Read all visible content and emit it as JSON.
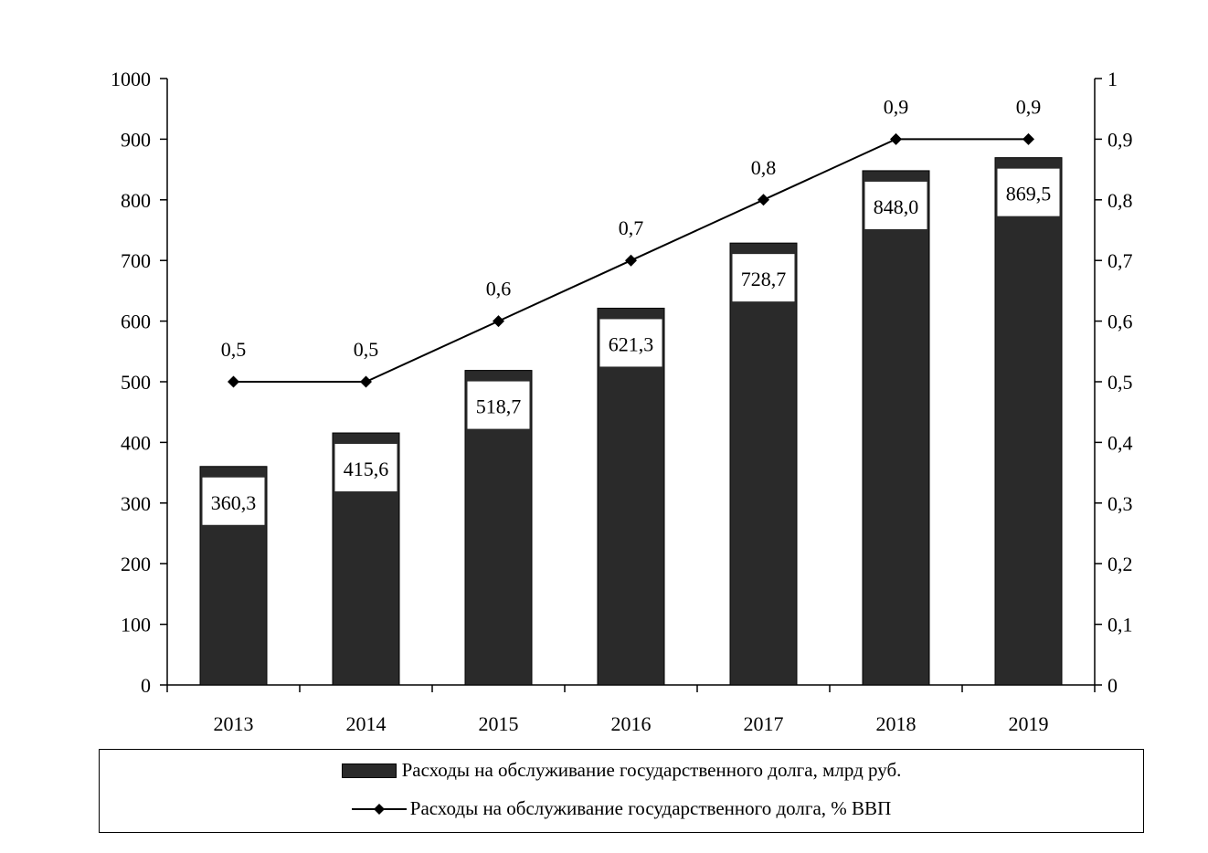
{
  "chart_data": {
    "type": "bar",
    "categories": [
      "2013",
      "2014",
      "2015",
      "2016",
      "2017",
      "2018",
      "2019"
    ],
    "series": [
      {
        "name": "Расходы на обслуживание государственного долга, млрд руб.",
        "type": "bar",
        "axis": "left",
        "values": [
          360.3,
          415.6,
          518.7,
          621.3,
          728.7,
          848.0,
          869.5
        ],
        "labels": [
          "360,3",
          "415,6",
          "518,7",
          "621,3",
          "728,7",
          "848,0",
          "869,5"
        ],
        "color": "#2a2a2a"
      },
      {
        "name": "Расходы на обслуживание государственного долга, % ВВП",
        "type": "line",
        "axis": "right",
        "values": [
          0.5,
          0.5,
          0.6,
          0.7,
          0.8,
          0.9,
          0.9
        ],
        "labels": [
          "0,5",
          "0,5",
          "0,6",
          "0,7",
          "0,8",
          "0,9",
          "0,9"
        ],
        "color": "#000000"
      }
    ],
    "ylim": [
      0,
      1000
    ],
    "y_ticks": [
      "0",
      "100",
      "200",
      "300",
      "400",
      "500",
      "600",
      "700",
      "800",
      "900",
      "1000"
    ],
    "y2lim": [
      0,
      1
    ],
    "y2_ticks": [
      "0",
      "0,1",
      "0,2",
      "0,3",
      "0,4",
      "0,5",
      "0,6",
      "0,7",
      "0,8",
      "0,9",
      "1"
    ],
    "grid": false,
    "legend_position": "bottom"
  }
}
